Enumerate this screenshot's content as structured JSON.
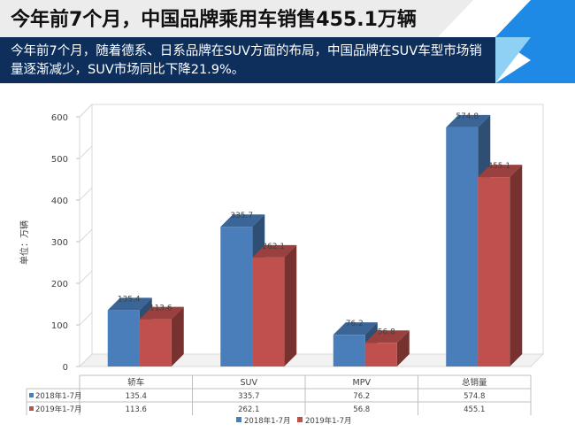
{
  "header": {
    "title": "今年前7个月，中国品牌乘用车销售455.1万辆",
    "subtitle": "今年前7个月，随着德系、日系品牌在SUV方面的布局，中国品牌在SUV车型市场销量逐渐减少，SUV市场同比下降21.9%。"
  },
  "colors": {
    "title_band": "#ececec",
    "subtitle_band": "#0e2f5c",
    "accent_blue": "#1f8ae6",
    "accent_light_blue": "#8fd0f5"
  },
  "chart_data": {
    "type": "bar",
    "style": "3d-clustered-column-with-data-table",
    "title": "",
    "xlabel": "",
    "ylabel": "单位：万辆",
    "ylim": [
      0,
      600
    ],
    "yticks": [
      0,
      100,
      200,
      300,
      400,
      500,
      600
    ],
    "categories": [
      "轿车",
      "SUV",
      "MPV",
      "总销量"
    ],
    "series": [
      {
        "name": "2018年1-7月",
        "color": "#4a7ebb",
        "values": [
          135.4,
          335.7,
          76.2,
          574.8
        ]
      },
      {
        "name": "2019年1-7月",
        "color": "#c0504d",
        "values": [
          113.6,
          262.1,
          56.8,
          455.1
        ]
      }
    ],
    "data_labels": true,
    "data_table": true,
    "grid": false,
    "legend": "bottom-center"
  }
}
